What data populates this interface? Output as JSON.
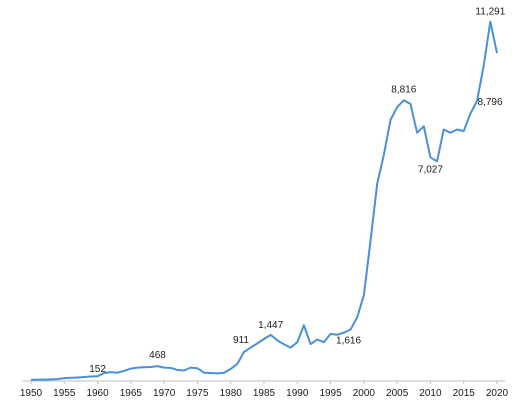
{
  "chart_data": {
    "type": "line",
    "title": "",
    "xlabel": "",
    "ylabel": "",
    "xlim": [
      1950,
      2020
    ],
    "ylim": [
      0,
      12000
    ],
    "grid": false,
    "legend": "none",
    "colors": {
      "line": "#4a90d9",
      "axis": "#bfbfbf",
      "text": "#1a1a1a"
    },
    "x_ticks": [
      1950,
      1955,
      1960,
      1965,
      1970,
      1975,
      1980,
      1985,
      1990,
      1995,
      2000,
      2005,
      2010,
      2015,
      2020
    ],
    "x_tick_labels": [
      "1950",
      "1955",
      "1960",
      "1965",
      "1970",
      "1975",
      "1980",
      "1985",
      "1990",
      "1995",
      "2000",
      "2005",
      "2010",
      "2015",
      "2020"
    ],
    "series": [
      {
        "x": [
          1950,
          1951,
          1952,
          1953,
          1954,
          1955,
          1956,
          1957,
          1958,
          1959,
          1960,
          1961,
          1962,
          1963,
          1964,
          1965,
          1966,
          1967,
          1968,
          1969,
          1970,
          1971,
          1972,
          1973,
          1974,
          1975,
          1976,
          1977,
          1978,
          1979,
          1980,
          1981,
          1982,
          1983,
          1984,
          1985,
          1986,
          1987,
          1988,
          1989,
          1990,
          1991,
          1992,
          1993,
          1994,
          1995,
          1996,
          1997,
          1998,
          1999,
          2000,
          2001,
          2002,
          2003,
          2004,
          2005,
          2006,
          2007,
          2008,
          2009,
          2010,
          2011,
          2012,
          2013,
          2014,
          2015,
          2016,
          2017,
          2018,
          2019,
          2020
        ],
        "values": [
          35,
          45,
          45,
          50,
          60,
          90,
          105,
          110,
          125,
          140,
          152,
          250,
          280,
          260,
          320,
          390,
          420,
          430,
          440,
          468,
          420,
          410,
          350,
          330,
          420,
          400,
          260,
          250,
          240,
          260,
          380,
          540,
          911,
          1050,
          1180,
          1320,
          1447,
          1280,
          1150,
          1050,
          1220,
          1750,
          1160,
          1300,
          1220,
          1480,
          1450,
          1520,
          1616,
          2000,
          2700,
          4400,
          6200,
          7100,
          8200,
          8600,
          8816,
          8700,
          7800,
          8000,
          7027,
          6900,
          7900,
          7800,
          7900,
          7850,
          8400,
          8796,
          9900,
          11291,
          10300
        ]
      }
    ],
    "annotations": [
      {
        "x": 1960,
        "y": 152,
        "text": "152"
      },
      {
        "x": 1969,
        "y": 468,
        "text": "468"
      },
      {
        "x": 1982,
        "y": 911,
        "text": "911"
      },
      {
        "x": 1986,
        "y": 1447,
        "text": "1,447"
      },
      {
        "x": 1998,
        "y": 1616,
        "text": "1,616"
      },
      {
        "x": 2006,
        "y": 8816,
        "text": "8,816"
      },
      {
        "x": 2010,
        "y": 7027,
        "text": "7,027"
      },
      {
        "x": 2017,
        "y": 8796,
        "text": "8,796"
      },
      {
        "x": 2019,
        "y": 11291,
        "text": "11,291"
      }
    ]
  }
}
